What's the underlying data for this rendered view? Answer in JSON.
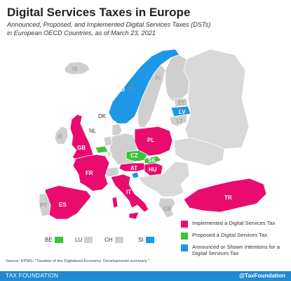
{
  "title": "Digital Services Taxes in Europe",
  "subtitle_line1": "Announced, Proposed, and Implemented Digital Services Taxes (DSTs)",
  "subtitle_line2": "in European OECD Countries, as of March 23, 2021",
  "colors": {
    "implemented": "#ea0b6f",
    "proposed": "#3ec23c",
    "announced": "#1e98e6",
    "none": "#cfcfcf",
    "border": "#ffffff",
    "footer": "#1f8ad6"
  },
  "map_labels": {
    "IS": "IS",
    "IE": "IE",
    "GB": "GB",
    "FR": "FR",
    "ES": "ES",
    "PT": "PT",
    "NO": "NO",
    "SE": "SE",
    "FI": "FI",
    "EE": "EE",
    "LV": "LV",
    "LT": "LT",
    "DK": "DK",
    "NL": "NL",
    "PL": "PL",
    "CZ": "CZ",
    "SK": "SK",
    "AT": "AT",
    "HU": "HU",
    "IT": "IT",
    "GR": "GR",
    "TR": "TR"
  },
  "small_countries": [
    {
      "code": "BE",
      "status": "proposed"
    },
    {
      "code": "LU",
      "status": "none"
    },
    {
      "code": "CH",
      "status": "none"
    },
    {
      "code": "SI",
      "status": "announced"
    }
  ],
  "legend": {
    "implemented": "Implemented a Digital Services Tax",
    "proposed": "Proposed a Digital Services Tax",
    "announced": "Announced or Shown Intentions for a Digital Services Tax"
  },
  "source": "Source: KPMG, \"Taxation of the Digitalized Economy: Developments summary.\"",
  "footer": {
    "left": "TAX FOUNDATION",
    "right": "@TaxFoundation"
  }
}
